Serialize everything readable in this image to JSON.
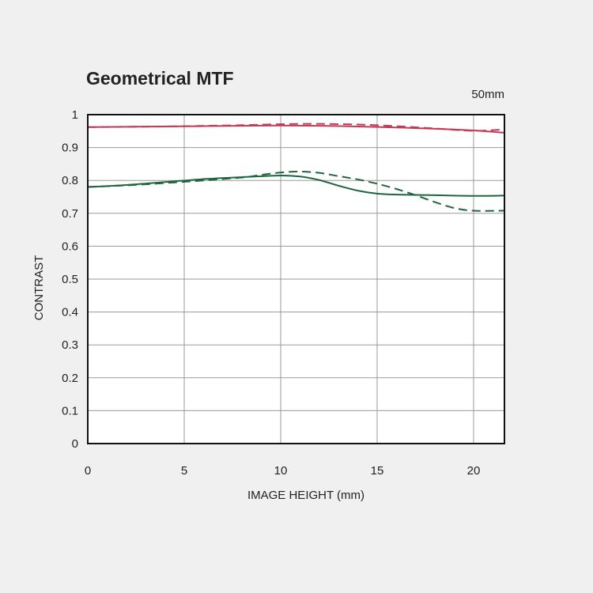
{
  "chart_data": {
    "type": "line",
    "title": "Geometrical MTF",
    "subtitle": "50mm",
    "xlabel": "IMAGE HEIGHT (mm)",
    "ylabel": "CONTRAST",
    "xlim": [
      0,
      21.6
    ],
    "ylim": [
      0,
      1
    ],
    "x_ticks": [
      0,
      5,
      10,
      15,
      20
    ],
    "y_ticks": [
      0,
      0.1,
      0.2,
      0.3,
      0.4,
      0.5,
      0.6,
      0.7,
      0.8,
      0.9,
      1
    ],
    "grid": true,
    "legend": "none",
    "series": [
      {
        "color": "#c43a55",
        "style": "solid",
        "x": [
          0,
          2,
          4,
          6,
          8,
          10,
          12,
          14,
          16,
          18,
          20,
          21.6
        ],
        "y": [
          0.962,
          0.963,
          0.964,
          0.965,
          0.966,
          0.967,
          0.966,
          0.964,
          0.961,
          0.957,
          0.952,
          0.945
        ]
      },
      {
        "color": "#c43a55",
        "style": "dashed",
        "x": [
          0,
          2,
          4,
          6,
          8,
          10,
          11,
          12,
          14,
          16,
          18,
          20,
          21.6
        ],
        "y": [
          0.962,
          0.963,
          0.964,
          0.966,
          0.968,
          0.971,
          0.972,
          0.972,
          0.97,
          0.965,
          0.958,
          0.951,
          0.955
        ]
      },
      {
        "color": "#1e6640",
        "style": "solid",
        "x": [
          0,
          2,
          4,
          6,
          8,
          10,
          11,
          12,
          13,
          14,
          15,
          16,
          18,
          20,
          21.6
        ],
        "y": [
          0.78,
          0.786,
          0.795,
          0.804,
          0.81,
          0.815,
          0.812,
          0.801,
          0.784,
          0.769,
          0.76,
          0.757,
          0.755,
          0.753,
          0.754
        ]
      },
      {
        "color": "#1e6640",
        "style": "dashed",
        "x": [
          0,
          2,
          4,
          6,
          8,
          9,
          10,
          11,
          12,
          13,
          14,
          15,
          16,
          17,
          18,
          19,
          20,
          21.6
        ],
        "y": [
          0.78,
          0.785,
          0.792,
          0.8,
          0.809,
          0.817,
          0.824,
          0.827,
          0.823,
          0.813,
          0.803,
          0.79,
          0.774,
          0.755,
          0.734,
          0.716,
          0.708,
          0.708
        ]
      }
    ]
  }
}
